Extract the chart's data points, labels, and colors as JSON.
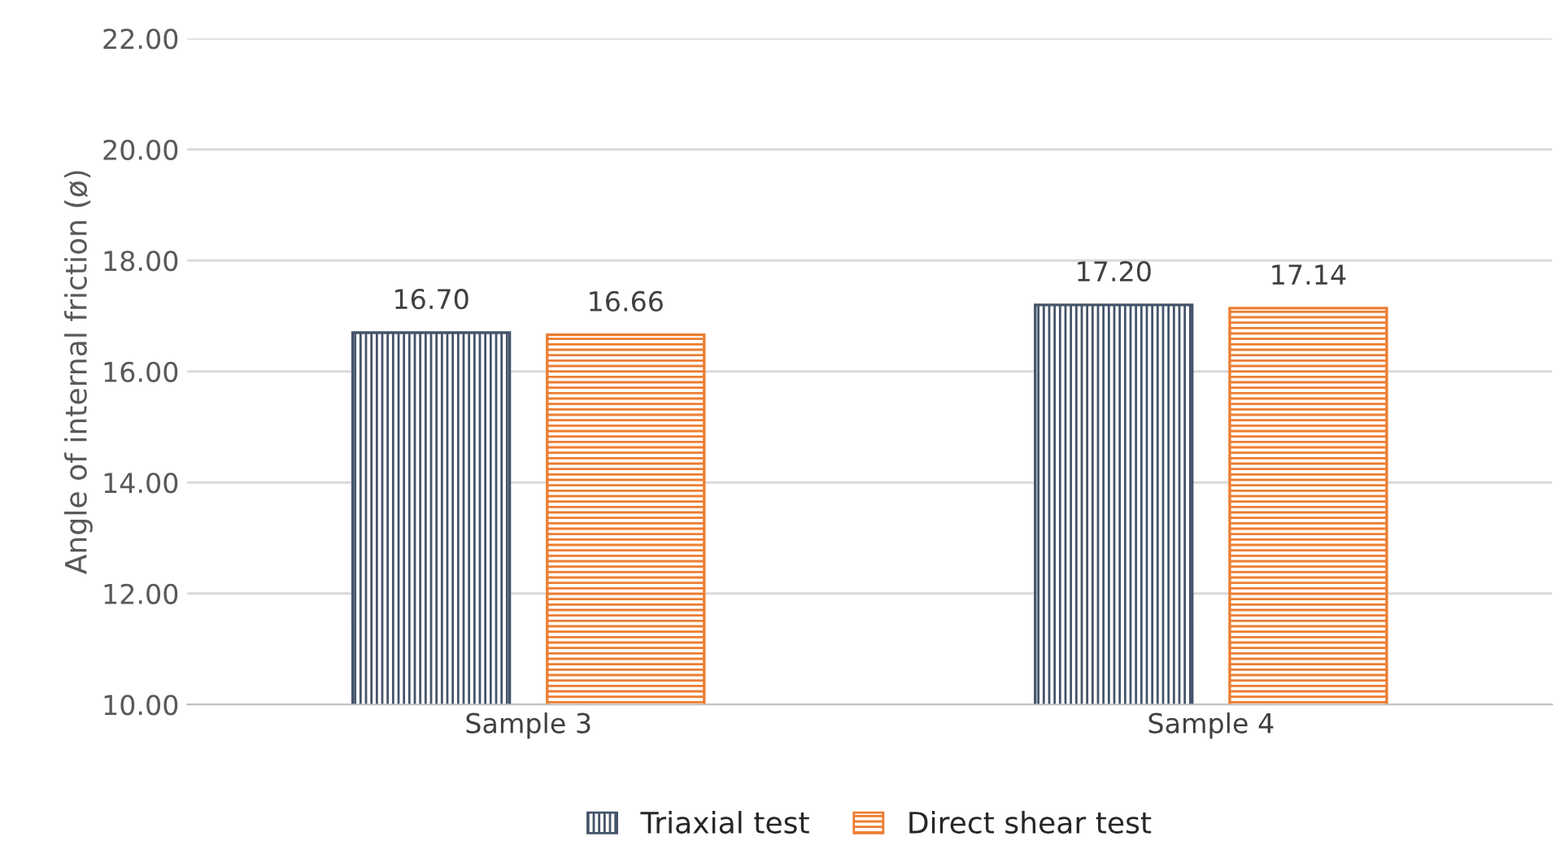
{
  "chart_data": {
    "type": "bar",
    "ylabel": "Angle of internal friction (ø)",
    "categories": [
      "Sample 3",
      "Sample 4"
    ],
    "series": [
      {
        "name": "Triaxial test",
        "color": "#44546a",
        "values": [
          16.7,
          17.2
        ],
        "value_labels": [
          "16.70",
          "17.20"
        ]
      },
      {
        "name": "Direct shear test",
        "color": "#ed7d31",
        "values": [
          16.66,
          17.14
        ],
        "value_labels": [
          "16.66",
          "17.14"
        ]
      }
    ],
    "ylim": [
      10,
      22
    ],
    "yticks": [
      {
        "value": 10,
        "label": "10.00"
      },
      {
        "value": 12,
        "label": "12.00"
      },
      {
        "value": 14,
        "label": "14.00"
      },
      {
        "value": 16,
        "label": "16.00"
      },
      {
        "value": 18,
        "label": "18.00"
      },
      {
        "value": 20,
        "label": "20.00"
      },
      {
        "value": 22,
        "label": "22.00"
      }
    ],
    "grid": "y",
    "legend": "bottom"
  }
}
